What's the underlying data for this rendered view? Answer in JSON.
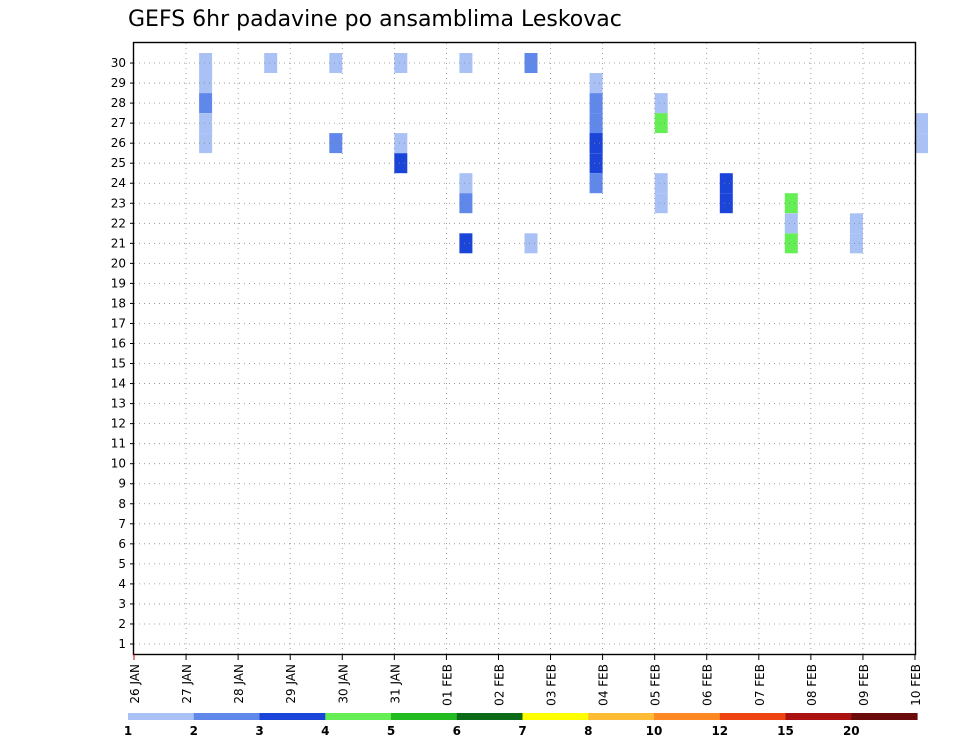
{
  "chart_data": {
    "type": "heatmap",
    "title": "GEFS 6hr padavine po ansamblima Leskovac",
    "xlabel": "",
    "ylabel": "",
    "x_ticks": [
      "26 JAN",
      "27 JAN",
      "28 JAN",
      "29 JAN",
      "30 JAN",
      "31 JAN",
      "01 FEB",
      "02 FEB",
      "03 FEB",
      "04 FEB",
      "05 FEB",
      "06 FEB",
      "07 FEB",
      "08 FEB",
      "09 FEB",
      "10 FEB"
    ],
    "x_range_steps": [
      0,
      60
    ],
    "y_ticks": [
      1,
      2,
      3,
      4,
      5,
      6,
      7,
      8,
      9,
      10,
      11,
      12,
      13,
      14,
      15,
      16,
      17,
      18,
      19,
      20,
      21,
      22,
      23,
      24,
      25,
      26,
      27,
      28,
      29,
      30
    ],
    "y_range": [
      0,
      30
    ],
    "grid": true,
    "colorbar": {
      "labels": [
        "1",
        "2",
        "3",
        "4",
        "5",
        "6",
        "7",
        "8",
        "10",
        "12",
        "15",
        "20"
      ],
      "colors": [
        "#a9c1f5",
        "#6088ea",
        "#1a45d8",
        "#66ee55",
        "#22bb22",
        "#0b6b18",
        "#ffff00",
        "#ffbb33",
        "#ff8822",
        "#ee4411",
        "#aa1111",
        "#6b0a0a"
      ]
    },
    "cells": [
      [
        1,
        30,
        0
      ],
      [
        2,
        30,
        0
      ],
      [
        3,
        30,
        0
      ],
      [
        4,
        30,
        0
      ],
      [
        5,
        30,
        0
      ],
      [
        6,
        30,
        1
      ],
      [
        7,
        29,
        0
      ],
      [
        7,
        28,
        1
      ],
      [
        7,
        27,
        1
      ],
      [
        7,
        26,
        1
      ],
      [
        7,
        25,
        2
      ],
      [
        7,
        26,
        2
      ],
      [
        8,
        27,
        3
      ],
      [
        8,
        28,
        0
      ],
      [
        9,
        24,
        2
      ],
      [
        9,
        23,
        2
      ],
      [
        10,
        23,
        3
      ],
      [
        10,
        21,
        3
      ],
      [
        11,
        21,
        0
      ],
      [
        12,
        26,
        0
      ],
      [
        12,
        27,
        0
      ],
      [
        1,
        29,
        0
      ],
      [
        1,
        28,
        1
      ],
      [
        1,
        27,
        0
      ],
      [
        1,
        26,
        0
      ],
      [
        3,
        26,
        1
      ],
      [
        4,
        26,
        0
      ],
      [
        4,
        25,
        2
      ],
      [
        5,
        24,
        0
      ],
      [
        5,
        23,
        1
      ],
      [
        5,
        21,
        2
      ],
      [
        6,
        21,
        0
      ],
      [
        7,
        24,
        1
      ],
      [
        8,
        24,
        0
      ],
      [
        8,
        23,
        0
      ],
      [
        10,
        22,
        0
      ],
      [
        11,
        22,
        0
      ]
    ]
  }
}
